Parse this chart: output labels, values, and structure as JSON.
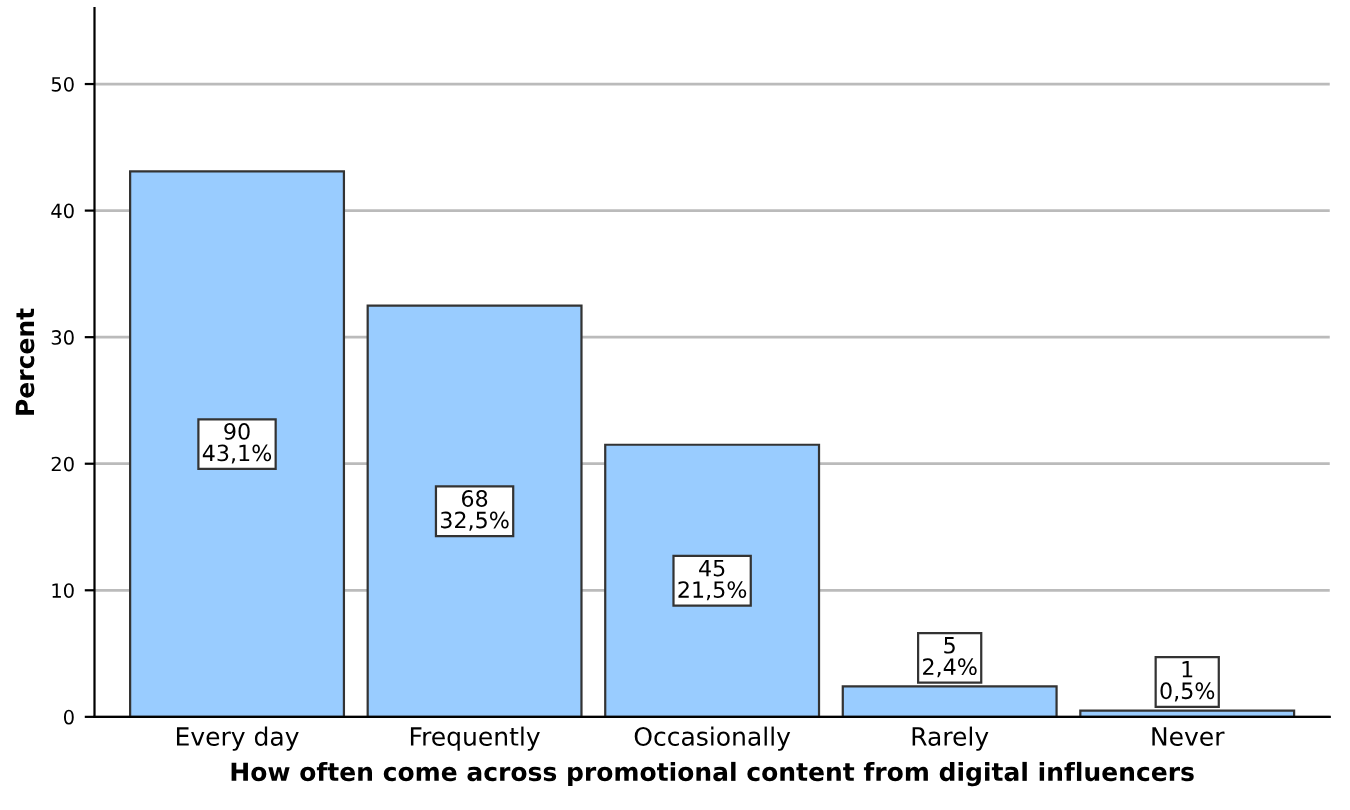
{
  "chart_data": {
    "type": "bar",
    "xlabel": "How often come across promotional content from digital influencers",
    "ylabel": "Percent",
    "categories": [
      "Every day",
      "Frequently",
      "Occasionally",
      "Rarely",
      "Never"
    ],
    "values": [
      43.1,
      32.5,
      21.5,
      2.4,
      0.5
    ],
    "value_labels": [
      "90\n43,1%",
      "68\n32,5%",
      "45\n21,5%",
      "5\n2,4%",
      "1\n0,5%"
    ],
    "color": "#99ccff",
    "ylim": [
      0,
      56
    ],
    "yticks": [
      0,
      10,
      20,
      30,
      40,
      50
    ],
    "grid": "y",
    "legend": false
  }
}
